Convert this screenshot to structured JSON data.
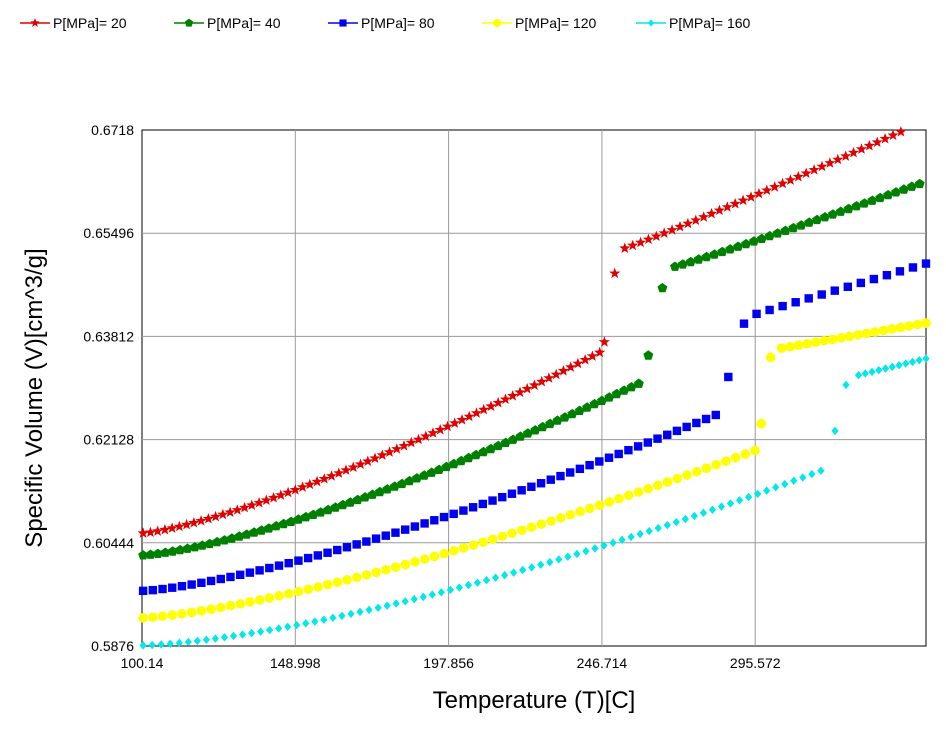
{
  "chart_data": {
    "type": "scatter",
    "title": "",
    "xlabel": "Temperature (T)[C]",
    "ylabel": "Specific Volume (V)[cm^3/g]",
    "xlim": [
      100.14,
      350.0
    ],
    "ylim": [
      0.5876,
      0.6718
    ],
    "x_ticks": [
      "100.14",
      "148.998",
      "197.856",
      "246.714",
      "295.572"
    ],
    "y_ticks": [
      "0.6718",
      "0.65496",
      "0.63812",
      "0.62128",
      "0.60444",
      "0.5876"
    ],
    "grid": true,
    "legend_position": "top",
    "series": [
      {
        "name": "P[MPa]= 20",
        "color": "#e00000",
        "marker": "star",
        "segments": [
          {
            "x0": 100.5,
            "x1": 246.0,
            "n": 64,
            "y0": 0.606,
            "y1": 0.6355,
            "curve": 1.3
          },
          {
            "x0": 247.5,
            "x1": 249.0,
            "n": 1,
            "y0": 0.6372,
            "y1": 0.6372,
            "curve": 1
          },
          {
            "x0": 250.8,
            "x1": 252.0,
            "n": 1,
            "y0": 0.6484,
            "y1": 0.6484,
            "curve": 1
          },
          {
            "x0": 254.0,
            "x1": 342.0,
            "n": 36,
            "y0": 0.6525,
            "y1": 0.6715,
            "curve": 1.05
          }
        ]
      },
      {
        "name": "P[MPa]= 40",
        "color": "#008000",
        "marker": "pentagon",
        "segments": [
          {
            "x0": 100.5,
            "x1": 258.5,
            "n": 68,
            "y0": 0.6024,
            "y1": 0.6304,
            "curve": 1.35
          },
          {
            "x0": 261.5,
            "x1": 262.0,
            "n": 1,
            "y0": 0.635,
            "y1": 0.635,
            "curve": 1
          },
          {
            "x0": 266.0,
            "x1": 267.0,
            "n": 1,
            "y0": 0.646,
            "y1": 0.646,
            "curve": 1
          },
          {
            "x0": 270.0,
            "x1": 348.0,
            "n": 32,
            "y0": 0.6495,
            "y1": 0.663,
            "curve": 1.05
          }
        ]
      },
      {
        "name": "P[MPa]= 80",
        "color": "#0000ee",
        "marker": "square",
        "segments": [
          {
            "x0": 100.5,
            "x1": 283.0,
            "n": 60,
            "y0": 0.5966,
            "y1": 0.6253,
            "curve": 1.35
          },
          {
            "x0": 287.0,
            "x1": 288.0,
            "n": 1,
            "y0": 0.6315,
            "y1": 0.6315,
            "curve": 1
          },
          {
            "x0": 292.0,
            "x1": 293.0,
            "n": 1,
            "y0": 0.6402,
            "y1": 0.6402,
            "curve": 1
          },
          {
            "x0": 296.0,
            "x1": 350.0,
            "n": 14,
            "y0": 0.6418,
            "y1": 0.65,
            "curve": 1.0
          }
        ]
      },
      {
        "name": "P[MPa]= 120",
        "color": "#ffff00",
        "marker": "circle",
        "segments": [
          {
            "x0": 100.5,
            "x1": 295.5,
            "n": 64,
            "y0": 0.5922,
            "y1": 0.6195,
            "curve": 1.35
          },
          {
            "x0": 297.5,
            "x1": 298.0,
            "n": 1,
            "y0": 0.6239,
            "y1": 0.6239,
            "curve": 1
          },
          {
            "x0": 300.5,
            "x1": 301.0,
            "n": 1,
            "y0": 0.6347,
            "y1": 0.6347,
            "curve": 1
          },
          {
            "x0": 304.0,
            "x1": 350.0,
            "n": 18,
            "y0": 0.6362,
            "y1": 0.6403,
            "curve": 1.0
          }
        ]
      },
      {
        "name": "P[MPa]= 160",
        "color": "#00e8e8",
        "marker": "diamond",
        "segments": [
          {
            "x0": 100.5,
            "x1": 316.5,
            "n": 76,
            "y0": 0.5877,
            "y1": 0.6162,
            "curve": 1.45
          },
          {
            "x0": 321.0,
            "x1": 322.0,
            "n": 1,
            "y0": 0.6227,
            "y1": 0.6227,
            "curve": 1
          },
          {
            "x0": 324.5,
            "x1": 325.0,
            "n": 1,
            "y0": 0.6302,
            "y1": 0.6302,
            "curve": 1
          },
          {
            "x0": 328.5,
            "x1": 350.0,
            "n": 11,
            "y0": 0.6318,
            "y1": 0.6345,
            "curve": 1.0
          }
        ]
      }
    ]
  }
}
